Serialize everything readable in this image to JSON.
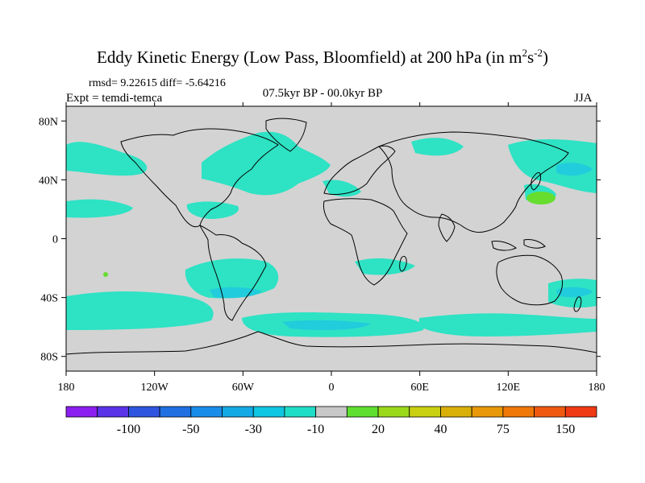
{
  "title": {
    "prefix": "Eddy Kinetic Energy (Low Pass, Bloomfield) at 200 hPa (in m",
    "sup1": "2",
    "mid": "s",
    "sup2": "-2",
    "suffix": ")"
  },
  "stats": "rmsd= 9.22615 diff= -5.64216",
  "expt": "Expt = temdi-temca",
  "period": "07.5kyr BP - 00.0kyr BP",
  "season": "JJA",
  "map": {
    "lon_ticks": [
      "180",
      "120W",
      "60W",
      "0",
      "60E",
      "120E",
      "180"
    ],
    "lat_ticks": [
      "80N",
      "40N",
      "0",
      "40S",
      "80S"
    ],
    "land_color": "#d3d3d3",
    "highlight_colors": {
      "light": "#2ee2c4",
      "mid": "#1ec8e0",
      "green": "#66dd2f"
    }
  },
  "colorbar": {
    "colors": [
      "#8b1ff0",
      "#5a32e8",
      "#2e55e0",
      "#2070e2",
      "#1a8de8",
      "#14aae6",
      "#10c6e0",
      "#20ddc8",
      "#c8c8c8",
      "#5fe030",
      "#9ad81a",
      "#c8d010",
      "#d8b008",
      "#e89808",
      "#ef7808",
      "#f05a10",
      "#f03a14"
    ],
    "labels": [
      "-100",
      "-50",
      "-30",
      "-10",
      "20",
      "40",
      "75",
      "150"
    ]
  }
}
